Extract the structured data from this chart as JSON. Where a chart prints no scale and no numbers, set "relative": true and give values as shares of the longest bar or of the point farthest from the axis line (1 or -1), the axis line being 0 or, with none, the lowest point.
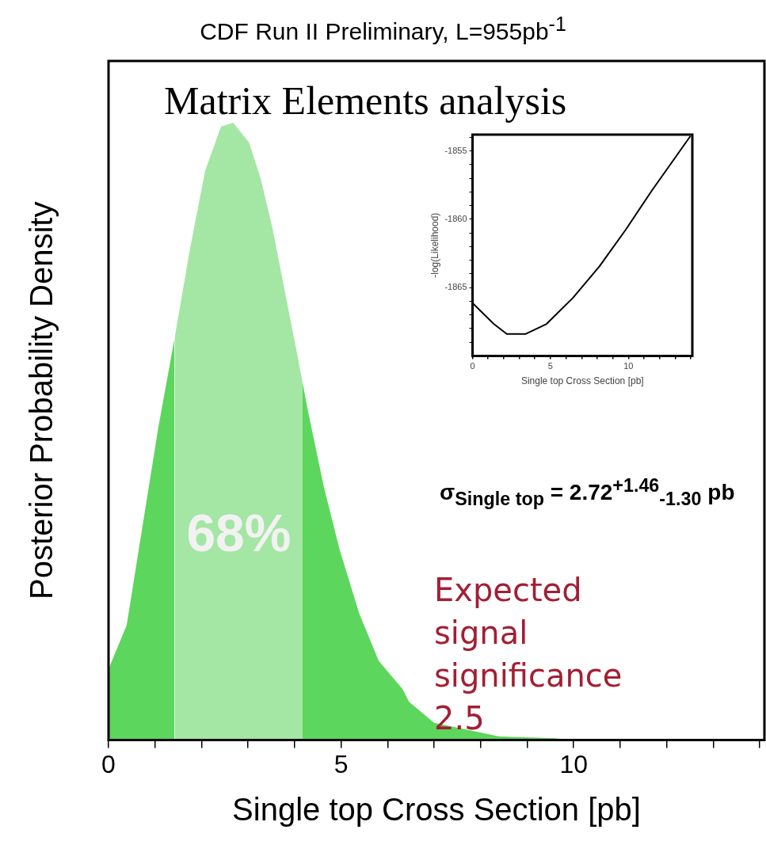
{
  "chart_data": [
    {
      "type": "area",
      "title": "CDF Run II Preliminary, L=955pb$^{-1}$",
      "xlabel": "Single top Cross Section [pb]",
      "ylabel": "Posterior Probability Density",
      "relative": true,
      "xlim": [
        0,
        14.1
      ],
      "xticks": [
        0,
        {
          "value": 1,
          "label": null
        },
        {
          "value": 2,
          "label": null
        },
        {
          "value": 3,
          "label": null
        },
        {
          "value": 4,
          "label": null
        },
        5,
        {
          "value": 6,
          "label": null
        },
        {
          "value": 7,
          "label": null
        },
        {
          "value": 8,
          "label": null
        },
        {
          "value": 9,
          "label": null
        },
        10,
        {
          "value": 11,
          "label": null
        },
        {
          "value": 12,
          "label": null
        },
        {
          "value": 13,
          "label": null
        },
        {
          "value": 14,
          "label": null
        }
      ],
      "grid": false,
      "legend": false,
      "series": [
        {
          "color": "#5cd65c",
          "x": [
            0,
            0.39,
            0.73,
            1.07,
            1.41,
            1.75,
            2.08,
            2.42,
            2.68,
            3.02,
            3.27,
            3.53,
            3.78,
            4.03,
            4.29,
            4.63,
            4.97,
            5.39,
            5.81,
            6.32,
            6.46,
            7.0,
            8.4,
            9.6,
            10.0
          ],
          "values": [
            0.115,
            0.186,
            0.346,
            0.506,
            0.647,
            0.795,
            0.923,
            0.994,
            1.0,
            0.968,
            0.91,
            0.827,
            0.731,
            0.635,
            0.532,
            0.41,
            0.308,
            0.205,
            0.128,
            0.083,
            0.062,
            0.028,
            0.006,
            0.003,
            0
          ]
        }
      ],
      "bands": [
        {
          "axis": "x",
          "from": 1.42,
          "to": 4.18,
          "label": "68%",
          "color": "#a4e6a4"
        }
      ],
      "annotations": [
        "Matrix Elements analysis",
        "σ$_{Single top}$ = 2.72$^{+1.46}$$_{-1.30}$ pb",
        "Expected signal significance 2.5"
      ]
    },
    {
      "type": "line",
      "xlabel": "Single top Cross Section [pb]",
      "ylabel": "-log(Likelihood)",
      "xlim": [
        0,
        14.1
      ],
      "ylim": [
        -1870,
        -1853.8
      ],
      "xticks": [
        0,
        {
          "value": 1,
          "label": null
        },
        {
          "value": 2,
          "label": null
        },
        {
          "value": 3,
          "label": null
        },
        {
          "value": 4,
          "label": null
        },
        5,
        {
          "value": 6,
          "label": null
        },
        {
          "value": 7,
          "label": null
        },
        {
          "value": 8,
          "label": null
        },
        {
          "value": 9,
          "label": null
        },
        10,
        {
          "value": 11,
          "label": null
        },
        {
          "value": 12,
          "label": null
        },
        {
          "value": 13,
          "label": null
        },
        {
          "value": 14,
          "label": null
        }
      ],
      "yticks": [
        {
          "value": -1869,
          "label": null
        },
        {
          "value": -1868,
          "label": null
        },
        {
          "value": -1867,
          "label": null
        },
        {
          "value": -1866,
          "label": null
        },
        -1865,
        {
          "value": -1864,
          "label": null
        },
        {
          "value": -1863,
          "label": null
        },
        {
          "value": -1862,
          "label": null
        },
        {
          "value": -1861,
          "label": null
        },
        -1860,
        {
          "value": -1859,
          "label": null
        },
        {
          "value": -1858,
          "label": null
        },
        {
          "value": -1857,
          "label": null
        },
        {
          "value": -1856,
          "label": null
        },
        -1855,
        {
          "value": -1854,
          "label": null
        }
      ],
      "grid": false,
      "legend": false,
      "marker": "none",
      "series": [
        {
          "color": "#000000",
          "x": [
            0,
            1.36,
            2.2,
            3.39,
            4.75,
            6.44,
            8.14,
            9.83,
            11.5,
            13.98
          ],
          "values": [
            -1866.13,
            -1867.66,
            -1868.4,
            -1868.4,
            -1867.66,
            -1865.75,
            -1863.45,
            -1860.76,
            -1857.9,
            -1853.9
          ]
        }
      ]
    }
  ]
}
